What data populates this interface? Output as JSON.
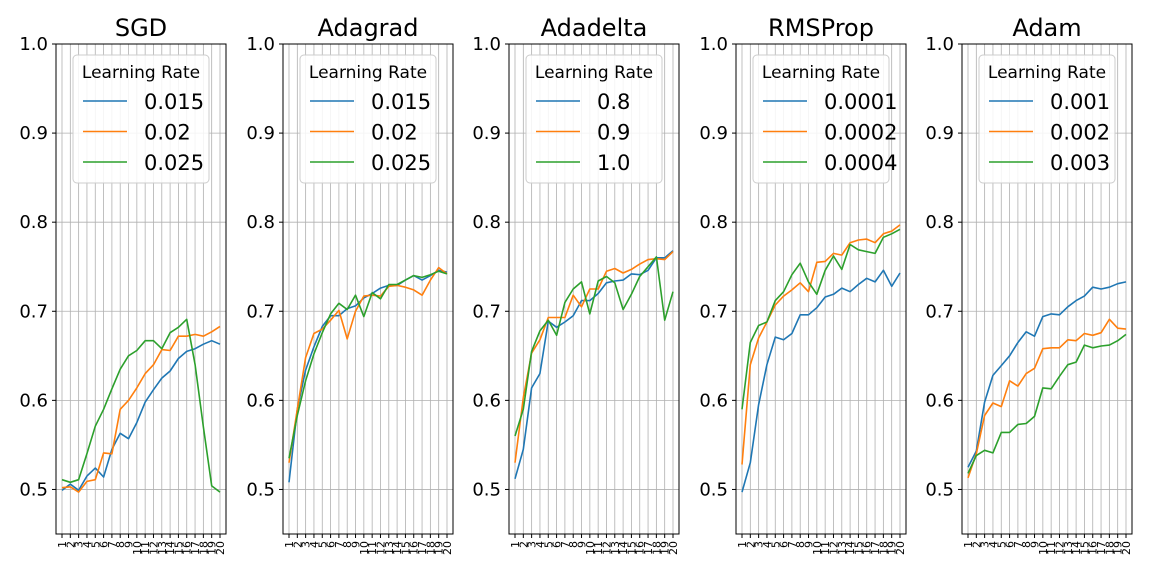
{
  "chart_data": [
    {
      "type": "line",
      "title": "SGD",
      "legend_title": "Learning Rate",
      "legend_position": "top",
      "grid": true,
      "x": [
        1,
        2,
        3,
        4,
        5,
        6,
        7,
        8,
        9,
        10,
        11,
        12,
        13,
        14,
        15,
        16,
        17,
        18,
        19,
        20
      ],
      "ylim": [
        0.45,
        1.0
      ],
      "yticks": [
        "0.5",
        "0.6",
        "0.7",
        "0.8",
        "0.9",
        "1.0"
      ],
      "series": [
        {
          "name": "0.015",
          "color": "#1f77b4",
          "values": [
            0.499,
            0.506,
            0.499,
            0.515,
            0.524,
            0.514,
            0.545,
            0.563,
            0.557,
            0.575,
            0.598,
            0.612,
            0.625,
            0.633,
            0.647,
            0.655,
            0.658,
            0.663,
            0.667,
            0.663
          ]
        },
        {
          "name": "0.02",
          "color": "#ff7f0e",
          "values": [
            0.502,
            0.503,
            0.497,
            0.509,
            0.511,
            0.541,
            0.54,
            0.59,
            0.6,
            0.614,
            0.63,
            0.64,
            0.657,
            0.656,
            0.672,
            0.672,
            0.674,
            0.672,
            0.677,
            0.683
          ]
        },
        {
          "name": "0.025",
          "color": "#2ca02c",
          "values": [
            0.511,
            0.508,
            0.511,
            0.54,
            0.571,
            0.59,
            0.613,
            0.635,
            0.65,
            0.656,
            0.667,
            0.667,
            0.658,
            0.676,
            0.682,
            0.691,
            0.64,
            0.57,
            0.504,
            0.497
          ]
        }
      ]
    },
    {
      "type": "line",
      "title": "Adagrad",
      "legend_title": "Learning Rate",
      "legend_position": "top",
      "grid": true,
      "x": [
        1,
        2,
        3,
        4,
        5,
        6,
        7,
        8,
        9,
        10,
        11,
        12,
        13,
        14,
        15,
        16,
        17,
        18,
        19,
        20
      ],
      "ylim": [
        0.45,
        1.0
      ],
      "yticks": [
        "0.5",
        "0.6",
        "0.7",
        "0.8",
        "0.9",
        "1.0"
      ],
      "series": [
        {
          "name": "0.015",
          "color": "#1f77b4",
          "values": [
            0.508,
            0.59,
            0.634,
            0.66,
            0.683,
            0.695,
            0.695,
            0.703,
            0.706,
            0.715,
            0.72,
            0.726,
            0.729,
            0.729,
            0.735,
            0.74,
            0.735,
            0.74,
            0.746,
            0.744
          ]
        },
        {
          "name": "0.02",
          "color": "#ff7f0e",
          "values": [
            0.53,
            0.59,
            0.648,
            0.675,
            0.68,
            0.69,
            0.701,
            0.669,
            0.7,
            0.717,
            0.718,
            0.717,
            0.728,
            0.729,
            0.727,
            0.724,
            0.718,
            0.735,
            0.749,
            0.742
          ]
        },
        {
          "name": "0.025",
          "color": "#2ca02c",
          "values": [
            0.535,
            0.583,
            0.622,
            0.652,
            0.676,
            0.697,
            0.709,
            0.702,
            0.718,
            0.694,
            0.721,
            0.714,
            0.73,
            0.73,
            0.735,
            0.74,
            0.738,
            0.741,
            0.745,
            0.742
          ]
        }
      ]
    },
    {
      "type": "line",
      "title": "Adadelta",
      "legend_title": "Learning Rate",
      "legend_position": "top",
      "grid": true,
      "x": [
        1,
        2,
        3,
        4,
        5,
        6,
        7,
        8,
        9,
        10,
        11,
        12,
        13,
        14,
        15,
        16,
        17,
        18,
        19,
        20
      ],
      "ylim": [
        0.45,
        1.0
      ],
      "yticks": [
        "0.5",
        "0.6",
        "0.7",
        "0.8",
        "0.9",
        "1.0"
      ],
      "series": [
        {
          "name": "0.8",
          "color": "#1f77b4",
          "values": [
            0.512,
            0.545,
            0.614,
            0.63,
            0.689,
            0.682,
            0.688,
            0.695,
            0.712,
            0.712,
            0.72,
            0.732,
            0.734,
            0.735,
            0.742,
            0.741,
            0.746,
            0.76,
            0.76,
            0.768
          ]
        },
        {
          "name": "0.9",
          "color": "#ff7f0e",
          "values": [
            0.53,
            0.603,
            0.653,
            0.668,
            0.693,
            0.693,
            0.693,
            0.718,
            0.705,
            0.725,
            0.725,
            0.745,
            0.748,
            0.743,
            0.747,
            0.753,
            0.758,
            0.759,
            0.758,
            0.767
          ]
        },
        {
          "name": "1.0",
          "color": "#2ca02c",
          "values": [
            0.56,
            0.59,
            0.655,
            0.678,
            0.69,
            0.673,
            0.71,
            0.725,
            0.733,
            0.697,
            0.734,
            0.739,
            0.732,
            0.702,
            0.719,
            0.739,
            0.75,
            0.761,
            0.69,
            0.722
          ]
        }
      ]
    },
    {
      "type": "line",
      "title": "RMSProp",
      "legend_title": "Learning Rate",
      "legend_position": "top",
      "grid": true,
      "x": [
        1,
        2,
        3,
        4,
        5,
        6,
        7,
        8,
        9,
        10,
        11,
        12,
        13,
        14,
        15,
        16,
        17,
        18,
        19,
        20
      ],
      "ylim": [
        0.45,
        1.0
      ],
      "yticks": [
        "0.5",
        "0.6",
        "0.7",
        "0.8",
        "0.9",
        "1.0"
      ],
      "series": [
        {
          "name": "0.0001",
          "color": "#1f77b4",
          "values": [
            0.497,
            0.53,
            0.595,
            0.64,
            0.671,
            0.668,
            0.675,
            0.696,
            0.696,
            0.704,
            0.716,
            0.719,
            0.726,
            0.722,
            0.73,
            0.737,
            0.733,
            0.746,
            0.728,
            0.743
          ]
        },
        {
          "name": "0.0002",
          "color": "#ff7f0e",
          "values": [
            0.528,
            0.64,
            0.67,
            0.688,
            0.707,
            0.717,
            0.724,
            0.732,
            0.722,
            0.755,
            0.756,
            0.765,
            0.763,
            0.777,
            0.78,
            0.781,
            0.777,
            0.787,
            0.79,
            0.797
          ]
        },
        {
          "name": "0.0004",
          "color": "#2ca02c",
          "values": [
            0.59,
            0.665,
            0.684,
            0.688,
            0.712,
            0.722,
            0.741,
            0.754,
            0.733,
            0.719,
            0.746,
            0.762,
            0.747,
            0.775,
            0.769,
            0.767,
            0.765,
            0.783,
            0.787,
            0.792
          ]
        }
      ]
    },
    {
      "type": "line",
      "title": "Adam",
      "legend_title": "Learning Rate",
      "legend_position": "top",
      "grid": true,
      "x": [
        1,
        2,
        3,
        4,
        5,
        6,
        7,
        8,
        9,
        10,
        11,
        12,
        13,
        14,
        15,
        16,
        17,
        18,
        19,
        20
      ],
      "ylim": [
        0.45,
        1.0
      ],
      "yticks": [
        "0.5",
        "0.6",
        "0.7",
        "0.8",
        "0.9",
        "1.0"
      ],
      "series": [
        {
          "name": "0.001",
          "color": "#1f77b4",
          "values": [
            0.525,
            0.543,
            0.598,
            0.628,
            0.639,
            0.65,
            0.665,
            0.677,
            0.672,
            0.694,
            0.697,
            0.696,
            0.705,
            0.712,
            0.717,
            0.727,
            0.725,
            0.727,
            0.731,
            0.733
          ]
        },
        {
          "name": "0.002",
          "color": "#ff7f0e",
          "values": [
            0.513,
            0.54,
            0.583,
            0.597,
            0.593,
            0.622,
            0.616,
            0.63,
            0.636,
            0.658,
            0.659,
            0.659,
            0.668,
            0.667,
            0.675,
            0.673,
            0.676,
            0.691,
            0.681,
            0.68
          ]
        },
        {
          "name": "0.003",
          "color": "#2ca02c",
          "values": [
            0.518,
            0.538,
            0.544,
            0.541,
            0.564,
            0.564,
            0.573,
            0.574,
            0.582,
            0.614,
            0.613,
            0.627,
            0.64,
            0.643,
            0.662,
            0.659,
            0.661,
            0.662,
            0.667,
            0.674
          ]
        }
      ]
    }
  ]
}
